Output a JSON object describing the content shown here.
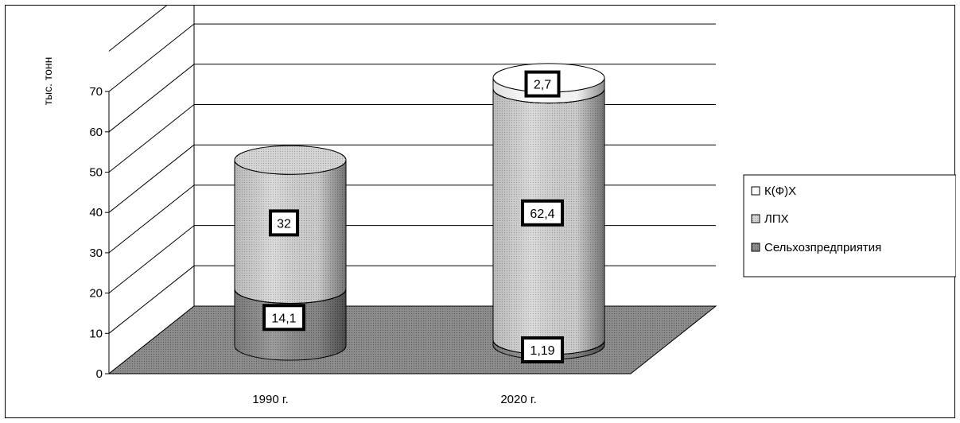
{
  "chart_data": {
    "type": "bar",
    "subtype": "stacked-3d-cylinder",
    "title": "",
    "ylabel": "тыс. тонн",
    "xlabel": "",
    "ylim": [
      0,
      70
    ],
    "yticks": [
      "0",
      "10",
      "20",
      "30",
      "40",
      "50",
      "60",
      "70"
    ],
    "grid": true,
    "legend_position": "right",
    "categories": [
      "1990 г.",
      "2020 г."
    ],
    "series": [
      {
        "name": "Сельхозпредприятия",
        "values": [
          14.1,
          1.19
        ],
        "labels": [
          "14,1",
          "1,19"
        ],
        "color": "#9a9a9a"
      },
      {
        "name": "ЛПХ",
        "values": [
          32,
          62.4
        ],
        "labels": [
          "32",
          "62,4"
        ],
        "color": "#d0d0d0"
      },
      {
        "name": "К(Ф)Х",
        "values": [
          0,
          2.7
        ],
        "labels": [
          "",
          "2,7"
        ],
        "color": "#ffffff"
      }
    ],
    "legend": [
      "К(Ф)Х",
      "ЛПХ",
      "Сельхозпредприятия"
    ],
    "floor_color": "#8a8a8a"
  }
}
